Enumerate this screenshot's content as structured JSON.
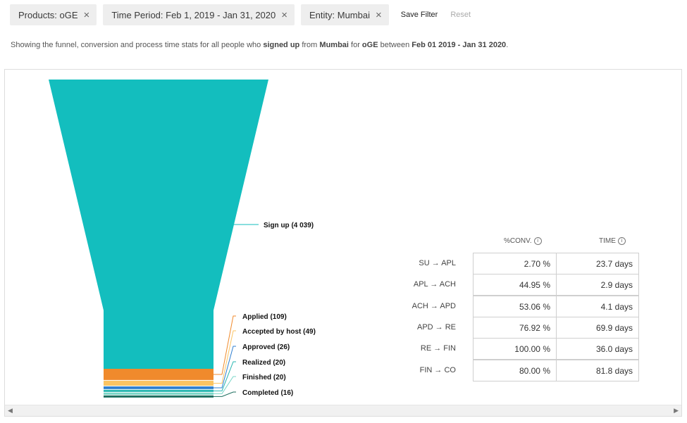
{
  "filters": {
    "chips": [
      {
        "label": "Products: oGE"
      },
      {
        "label": "Time Period: Feb 1, 2019 - Jan 31, 2020"
      },
      {
        "label": "Entity: Mumbai"
      }
    ],
    "save_label": "Save Filter",
    "reset_label": "Reset",
    "close_glyph": "×"
  },
  "summary": {
    "prefix": "Showing the funnel, conversion and process time stats for all people who ",
    "action": "signed up",
    "from_word": " from ",
    "entity": "Mumbai",
    "for_word": " for ",
    "product": "oGE",
    "between_word": " between ",
    "period": "Feb 01 2019 - Jan 31 2020",
    "suffix": "."
  },
  "funnel": {
    "stages": [
      {
        "label": "Sign up (4 039)",
        "count": 4039,
        "color": "#13bebe"
      },
      {
        "label": "Applied (109)",
        "count": 109,
        "color": "#f08a2c"
      },
      {
        "label": "Accepted by host (49)",
        "count": 49,
        "color": "#fbc463"
      },
      {
        "label": "Approved (26)",
        "count": 26,
        "color": "#2f7fd0"
      },
      {
        "label": "Realized (20)",
        "count": 20,
        "color": "#27b6b0"
      },
      {
        "label": "Finished (20)",
        "count": 20,
        "color": "#7ad6c8"
      },
      {
        "label": "Completed (16)",
        "count": 16,
        "color": "#1c6d5e"
      }
    ]
  },
  "stats": {
    "col_conv": "%CONV.",
    "col_time": "TIME",
    "info_glyph": "i",
    "rows": [
      {
        "label": "SU → APL",
        "conv": "2.70 %",
        "time": "23.7 days"
      },
      {
        "label": "APL → ACH",
        "conv": "44.95 %",
        "time": "2.9 days"
      },
      {
        "label": "ACH → APD",
        "conv": "53.06 %",
        "time": "4.1 days"
      },
      {
        "label": "APD → RE",
        "conv": "76.92 %",
        "time": "69.9 days"
      },
      {
        "label": "RE → FIN",
        "conv": "100.00 %",
        "time": "36.0 days"
      },
      {
        "label": "FIN → CO",
        "conv": "80.00 %",
        "time": "81.8 days"
      }
    ]
  },
  "scrollbar": {
    "left_glyph": "◀",
    "right_glyph": "▶"
  }
}
